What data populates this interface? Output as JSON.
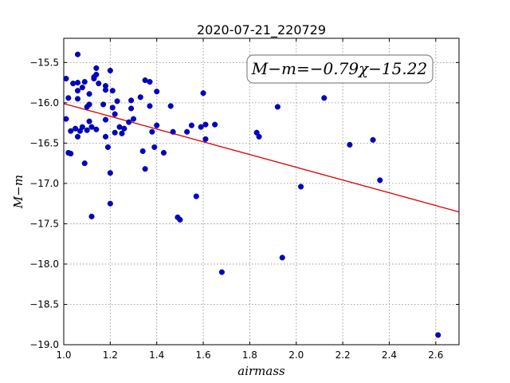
{
  "chart_data": {
    "type": "scatter",
    "title": "2020-07-21_220729",
    "xlabel": "airmass",
    "ylabel": "M−m",
    "xlim": [
      1.0,
      2.7
    ],
    "ylim": [
      -19.0,
      -15.2
    ],
    "y_inverted": true,
    "grid": true,
    "x_ticks": [
      1.0,
      1.2,
      1.4,
      1.6,
      1.8,
      2.0,
      2.2,
      2.4,
      2.6
    ],
    "x_tick_labels": [
      "1.0",
      "1.2",
      "1.4",
      "1.6",
      "1.8",
      "2.0",
      "2.2",
      "2.4",
      "2.6"
    ],
    "y_ticks": [
      -15.5,
      -16.0,
      -16.5,
      -17.0,
      -17.5,
      -18.0,
      -18.5,
      -19.0
    ],
    "y_tick_labels": [
      "−15.5",
      "−16.0",
      "−16.5",
      "−17.0",
      "−17.5",
      "−18.0",
      "−18.5",
      "−19.0"
    ],
    "fit_annotation": "M−m=−0.79χ−15.22",
    "fit_line": {
      "slope": -0.79,
      "intercept": -15.22
    },
    "colors": {
      "points": "#0000cc",
      "fit_line": "#dd0000",
      "grid": "#888888"
    },
    "series": [
      {
        "points": [
          [
            1.01,
            -15.7
          ],
          [
            1.02,
            -15.94
          ],
          [
            1.01,
            -16.2
          ],
          [
            1.02,
            -16.62
          ],
          [
            1.03,
            -16.63
          ],
          [
            1.03,
            -16.35
          ],
          [
            1.04,
            -15.76
          ],
          [
            1.05,
            -16.32
          ],
          [
            1.06,
            -15.4
          ],
          [
            1.06,
            -15.75
          ],
          [
            1.06,
            -15.85
          ],
          [
            1.06,
            -15.95
          ],
          [
            1.06,
            -16.42
          ],
          [
            1.07,
            -16.35
          ],
          [
            1.08,
            -15.81
          ],
          [
            1.08,
            -16.3
          ],
          [
            1.09,
            -15.74
          ],
          [
            1.09,
            -16.75
          ],
          [
            1.1,
            -16.05
          ],
          [
            1.1,
            -16.34
          ],
          [
            1.11,
            -15.89
          ],
          [
            1.11,
            -16.02
          ],
          [
            1.11,
            -16.23
          ],
          [
            1.12,
            -16.3
          ],
          [
            1.12,
            -17.41
          ],
          [
            1.13,
            -15.68
          ],
          [
            1.13,
            -15.7
          ],
          [
            1.14,
            -15.57
          ],
          [
            1.14,
            -15.65
          ],
          [
            1.14,
            -16.33
          ],
          [
            1.15,
            -15.76
          ],
          [
            1.17,
            -16.02
          ],
          [
            1.18,
            -15.79
          ],
          [
            1.18,
            -15.84
          ],
          [
            1.18,
            -16.21
          ],
          [
            1.18,
            -16.42
          ],
          [
            1.19,
            -16.55
          ],
          [
            1.2,
            -15.6
          ],
          [
            1.2,
            -16.87
          ],
          [
            1.2,
            -17.25
          ],
          [
            1.21,
            -15.85
          ],
          [
            1.21,
            -16.06
          ],
          [
            1.22,
            -16.14
          ],
          [
            1.22,
            -16.37
          ],
          [
            1.23,
            -15.98
          ],
          [
            1.24,
            -16.3
          ],
          [
            1.25,
            -16.38
          ],
          [
            1.26,
            -16.32
          ],
          [
            1.28,
            -16.24
          ],
          [
            1.29,
            -15.97
          ],
          [
            1.29,
            -16.07
          ],
          [
            1.3,
            -16.2
          ],
          [
            1.33,
            -15.93
          ],
          [
            1.34,
            -16.6
          ],
          [
            1.35,
            -15.72
          ],
          [
            1.35,
            -16.82
          ],
          [
            1.37,
            -15.74
          ],
          [
            1.37,
            -16.04
          ],
          [
            1.38,
            -16.36
          ],
          [
            1.39,
            -16.55
          ],
          [
            1.4,
            -15.86
          ],
          [
            1.4,
            -16.28
          ],
          [
            1.43,
            -16.62
          ],
          [
            1.46,
            -16.04
          ],
          [
            1.47,
            -16.36
          ],
          [
            1.49,
            -17.42
          ],
          [
            1.5,
            -17.45
          ],
          [
            1.53,
            -16.36
          ],
          [
            1.55,
            -16.28
          ],
          [
            1.57,
            -17.16
          ],
          [
            1.59,
            -16.3
          ],
          [
            1.6,
            -15.88
          ],
          [
            1.61,
            -16.27
          ],
          [
            1.61,
            -16.45
          ],
          [
            1.65,
            -16.27
          ],
          [
            1.68,
            -18.1
          ],
          [
            1.83,
            -16.37
          ],
          [
            1.84,
            -16.42
          ],
          [
            1.92,
            -16.05
          ],
          [
            1.94,
            -17.92
          ],
          [
            2.02,
            -17.04
          ],
          [
            2.12,
            -15.94
          ],
          [
            2.23,
            -16.52
          ],
          [
            2.33,
            -16.46
          ],
          [
            2.36,
            -16.96
          ],
          [
            2.61,
            -18.88
          ]
        ]
      }
    ]
  }
}
